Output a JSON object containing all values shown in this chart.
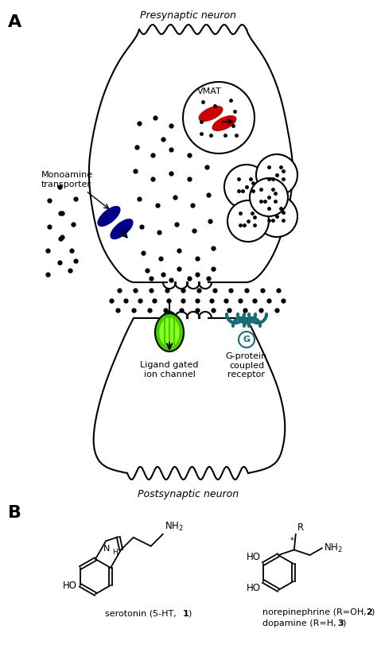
{
  "panel_A_label": "A",
  "panel_B_label": "B",
  "presynaptic_label": "Presynaptic neuron",
  "postsynaptic_label": "Postsynaptic neuron",
  "vmat_label": "VMAT",
  "monoamine_label": "Monoamine\ntransporter",
  "ligand_label": "Ligand gated\nion channel",
  "gprotein_label": "G-protein\ncoupled\nreceptor",
  "serotonin_label_plain": "serotonin (5-HT, ",
  "serotonin_label_bold": "1",
  "serotonin_label_end": ")",
  "norepinephrine_line1_plain": "norepinephrine (R=OH, ",
  "norepinephrine_line1_bold": "2",
  "norepinephrine_line1_end": ")",
  "dopamine_line_plain": "dopamine (R=H, ",
  "dopamine_line_bold": "3",
  "dopamine_line_end": ")",
  "bg_color": "#ffffff",
  "line_color": "#000000",
  "vmat_vesicle_color": "#cc0000",
  "monoamine_color": "#00008b",
  "ligand_color_outer": "#44cc00",
  "ligand_color_inner": "#88ff22",
  "gprotein_color": "#1a6b7a",
  "dot_color": "#000000",
  "figsize": [
    4.74,
    8.4
  ],
  "dpi": 100
}
